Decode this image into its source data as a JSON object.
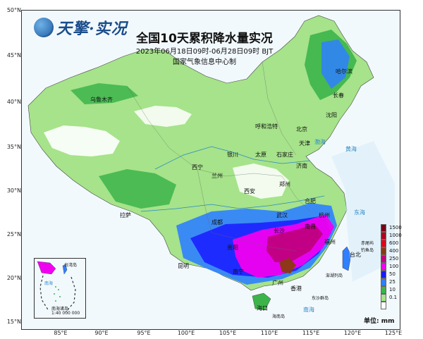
{
  "brand": {
    "name": "天擎·实况",
    "logo": "globe-logo-icon"
  },
  "header": {
    "title": "全国10天累积降水量实况",
    "subtitle": "2023年06月18日09时-06月28日09时 BJT",
    "credit": "国家气象信息中心制"
  },
  "axes": {
    "lat_ticks": [
      "50°N",
      "45°N",
      "40°N",
      "35°N",
      "30°N",
      "25°N",
      "20°N",
      "15°N"
    ],
    "lon_ticks": [
      "85°E",
      "90°E",
      "95°E",
      "100°E",
      "105°E",
      "110°E",
      "115°E",
      "120°E",
      "125°E"
    ]
  },
  "legend": {
    "unit_label": "单位: mm",
    "items": [
      {
        "label": "1500",
        "color": "#7a0015"
      },
      {
        "label": "1000",
        "color": "#b3001e"
      },
      {
        "label": "600",
        "color": "#e2001a"
      },
      {
        "label": "400",
        "color": "#8b3a0f"
      },
      {
        "label": "250",
        "color": "#c0007f"
      },
      {
        "label": "100",
        "color": "#f000f0"
      },
      {
        "label": "50",
        "color": "#1a1aff"
      },
      {
        "label": "25",
        "color": "#2f7fff"
      },
      {
        "label": "10",
        "color": "#3cb44a"
      },
      {
        "label": "0.1",
        "color": "#a6e38a"
      },
      {
        "label": "",
        "color": "#ffffff"
      }
    ]
  },
  "colors": {
    "light_green": "#a6e38a",
    "green": "#3cb44a",
    "blue": "#2f7fff",
    "dark_blue": "#1a1aff",
    "magenta": "#f000f0",
    "purple": "#c0007f",
    "brown": "#8b3a0f",
    "sea": "#d8ecf8",
    "white": "#ffffff"
  },
  "labels": {
    "cities": [
      {
        "name": "乌鲁木齐"
      },
      {
        "name": "哈尔滨"
      },
      {
        "name": "长春"
      },
      {
        "name": "沈阳"
      },
      {
        "name": "呼和浩特"
      },
      {
        "name": "北京"
      },
      {
        "name": "天津"
      },
      {
        "name": "石家庄"
      },
      {
        "name": "银川"
      },
      {
        "name": "太原"
      },
      {
        "name": "济南"
      },
      {
        "name": "西宁"
      },
      {
        "name": "兰州"
      },
      {
        "name": "郑州"
      },
      {
        "name": "西安"
      },
      {
        "name": "合肥"
      },
      {
        "name": "拉萨"
      },
      {
        "name": "成都"
      },
      {
        "name": "武汉"
      },
      {
        "name": "杭州"
      },
      {
        "name": "长沙"
      },
      {
        "name": "南昌"
      },
      {
        "name": "福州"
      },
      {
        "name": "台北"
      },
      {
        "name": "贵阳"
      },
      {
        "name": "昆明"
      },
      {
        "name": "南宁"
      },
      {
        "name": "广州"
      },
      {
        "name": "香港"
      },
      {
        "name": "海口"
      }
    ],
    "seas": [
      {
        "name": "渤海"
      },
      {
        "name": "黄海"
      },
      {
        "name": "东海"
      },
      {
        "name": "南海"
      }
    ],
    "islands": [
      {
        "name": "赤尾屿"
      },
      {
        "name": "钓鱼岛"
      },
      {
        "name": "澎湖列岛"
      },
      {
        "name": "东沙群岛"
      },
      {
        "name": "海南岛"
      }
    ],
    "inset": [
      {
        "name": "台湾岛"
      },
      {
        "name": "南海"
      },
      {
        "name": "南海诸岛"
      },
      {
        "name": "1:40 000 000"
      }
    ]
  }
}
